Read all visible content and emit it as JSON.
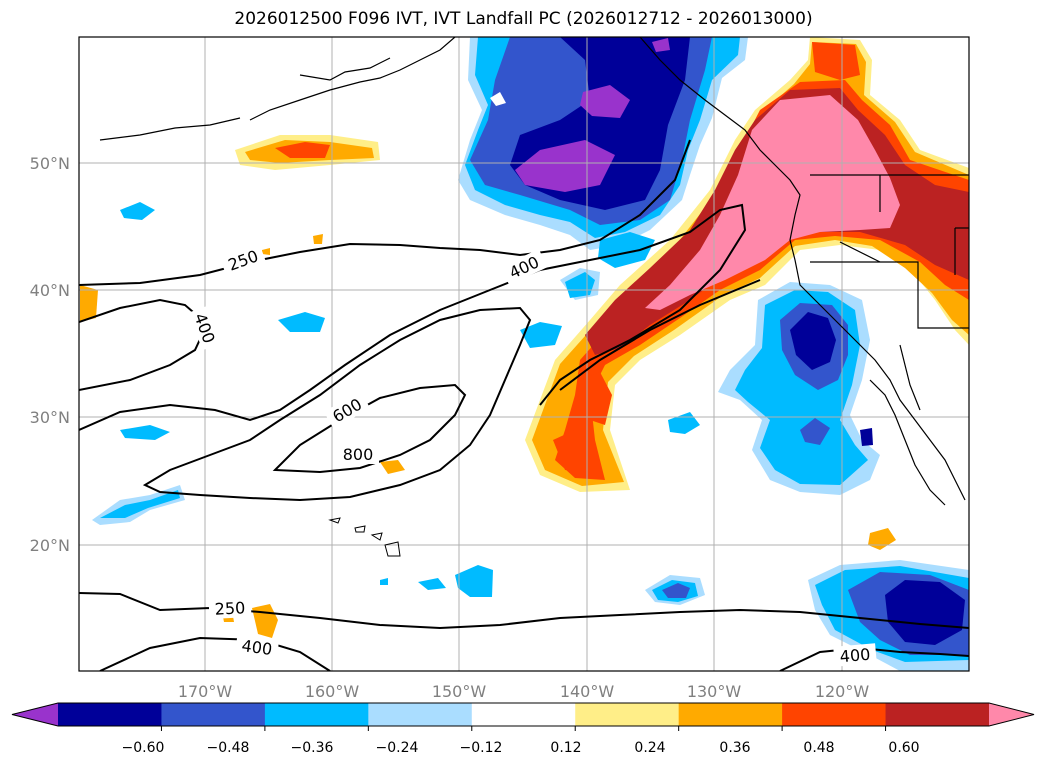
{
  "title": "2026012500 F096 IVT, IVT Landfall PC (2026012712 - 2026013000)",
  "map": {
    "lon_ticks": [
      "170°W",
      "160°W",
      "150°W",
      "140°W",
      "130°W",
      "120°W"
    ],
    "lat_ticks": [
      "50°N",
      "40°N",
      "30°N",
      "20°N"
    ],
    "contour_labels": [
      "250",
      "400",
      "400",
      "600",
      "800",
      "250",
      "400",
      "400"
    ]
  },
  "colorbar": {
    "ticks": [
      "−0.60",
      "−0.48",
      "−0.36",
      "−0.24",
      "−0.12",
      "0.12",
      "0.24",
      "0.36",
      "0.48",
      "0.60"
    ],
    "colors": [
      "#9933cc",
      "#000099",
      "#3355cc",
      "#00bbff",
      "#aaddff",
      "#ffffff",
      "#ffee88",
      "#ffaa00",
      "#ff4400",
      "#bb2222",
      "#ff88aa"
    ]
  }
}
